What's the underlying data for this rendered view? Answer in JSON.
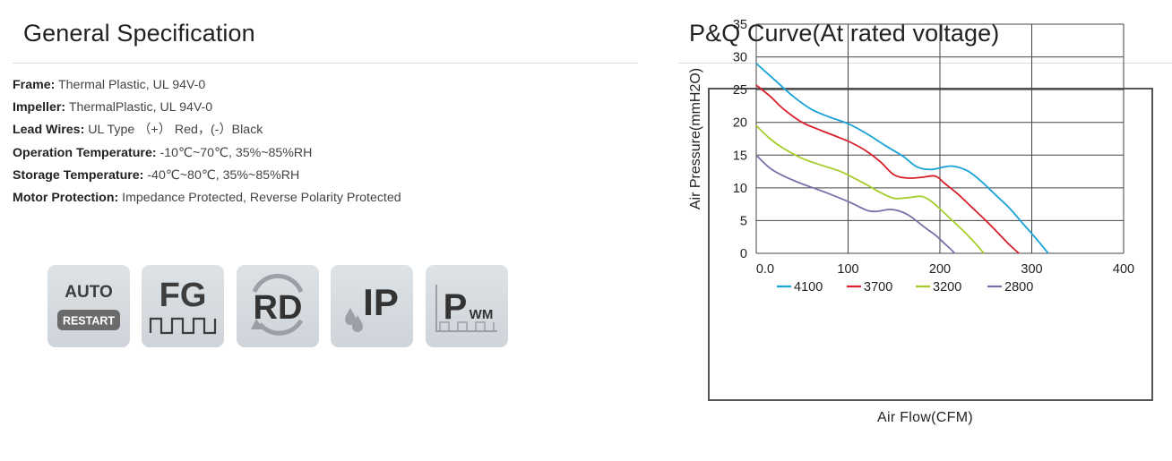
{
  "general": {
    "title": "General Specification",
    "specs": [
      {
        "label": "Frame:",
        "value": " Thermal Plastic, UL 94V-0"
      },
      {
        "label": "Impeller:",
        "value": " ThermalPlastic, UL 94V-0"
      },
      {
        "label": "Lead Wires:",
        "value": " UL Type （+） Red，(-）Black"
      },
      {
        "label": "Operation Temperature:",
        "value": " -10℃~70℃, 35%~85%RH"
      },
      {
        "label": "Storage Temperature:",
        "value": " -40℃~80℃, 35%~85%RH"
      },
      {
        "label": "Motor Protection:",
        "value": " Impedance Protected, Reverse Polarity Protected"
      }
    ],
    "icons": [
      {
        "name": "auto-restart-icon",
        "line1": "AUTO",
        "line2": "RESTART"
      },
      {
        "name": "fg-icon",
        "text": "FG"
      },
      {
        "name": "rd-icon",
        "text": "RD"
      },
      {
        "name": "ip-icon",
        "text": "IP"
      },
      {
        "name": "pwm-icon",
        "text": "P",
        "sub": "WM"
      }
    ]
  },
  "pq": {
    "title": "P&Q Curve(At rated voltage)"
  },
  "chart_data": {
    "type": "line",
    "title": "",
    "xlabel": "Air Flow(CFM)",
    "ylabel": "Air Pressure(mmH2O)",
    "xlim": [
      0,
      400
    ],
    "ylim": [
      0,
      35
    ],
    "xticks": [
      "0.0",
      "100",
      "200",
      "300",
      "400"
    ],
    "yticks": [
      "0",
      "5",
      "10",
      "15",
      "20",
      "25",
      "30",
      "35"
    ],
    "grid": true,
    "legend": "bottom",
    "series": [
      {
        "name": "4100",
        "color": "#1aa3d8",
        "points": [
          [
            0,
            29
          ],
          [
            20,
            26.5
          ],
          [
            40,
            24
          ],
          [
            60,
            22
          ],
          [
            80,
            20.8
          ],
          [
            100,
            19.8
          ],
          [
            120,
            18.3
          ],
          [
            140,
            16.5
          ],
          [
            160,
            14.8
          ],
          [
            175,
            13.2
          ],
          [
            190,
            12.8
          ],
          [
            205,
            13.2
          ],
          [
            215,
            13.3
          ],
          [
            230,
            12.6
          ],
          [
            245,
            11
          ],
          [
            260,
            9
          ],
          [
            275,
            7
          ],
          [
            290,
            4.6
          ],
          [
            305,
            2.2
          ],
          [
            318,
            0
          ]
        ]
      },
      {
        "name": "3700",
        "color": "#d8202a",
        "points": [
          [
            0,
            25.7
          ],
          [
            15,
            24
          ],
          [
            30,
            22
          ],
          [
            50,
            20
          ],
          [
            70,
            18.8
          ],
          [
            90,
            17.7
          ],
          [
            105,
            16.8
          ],
          [
            120,
            15.6
          ],
          [
            135,
            14
          ],
          [
            150,
            12
          ],
          [
            165,
            11.5
          ],
          [
            180,
            11.6
          ],
          [
            195,
            11.8
          ],
          [
            205,
            10.7
          ],
          [
            220,
            9
          ],
          [
            235,
            7
          ],
          [
            250,
            5
          ],
          [
            262,
            3.3
          ],
          [
            275,
            1.4
          ],
          [
            286,
            0
          ]
        ]
      },
      {
        "name": "3200",
        "color": "#a6cd2c",
        "points": [
          [
            0,
            19.5
          ],
          [
            15,
            17.5
          ],
          [
            30,
            16
          ],
          [
            50,
            14.5
          ],
          [
            70,
            13.5
          ],
          [
            90,
            12.6
          ],
          [
            105,
            11.6
          ],
          [
            120,
            10.5
          ],
          [
            135,
            9.3
          ],
          [
            150,
            8.4
          ],
          [
            165,
            8.5
          ],
          [
            180,
            8.7
          ],
          [
            190,
            8
          ],
          [
            200,
            6.8
          ],
          [
            212,
            5.2
          ],
          [
            225,
            3.5
          ],
          [
            238,
            1.6
          ],
          [
            248,
            0
          ]
        ]
      },
      {
        "name": "2800",
        "color": "#7a6fa9",
        "points": [
          [
            0,
            15
          ],
          [
            15,
            13
          ],
          [
            30,
            11.8
          ],
          [
            50,
            10.6
          ],
          [
            70,
            9.6
          ],
          [
            90,
            8.5
          ],
          [
            105,
            7.6
          ],
          [
            120,
            6.6
          ],
          [
            130,
            6.4
          ],
          [
            145,
            6.7
          ],
          [
            155,
            6.5
          ],
          [
            165,
            5.9
          ],
          [
            175,
            4.9
          ],
          [
            185,
            3.8
          ],
          [
            195,
            2.8
          ],
          [
            205,
            1.5
          ],
          [
            212,
            0.6
          ],
          [
            216,
            0
          ]
        ]
      }
    ]
  }
}
